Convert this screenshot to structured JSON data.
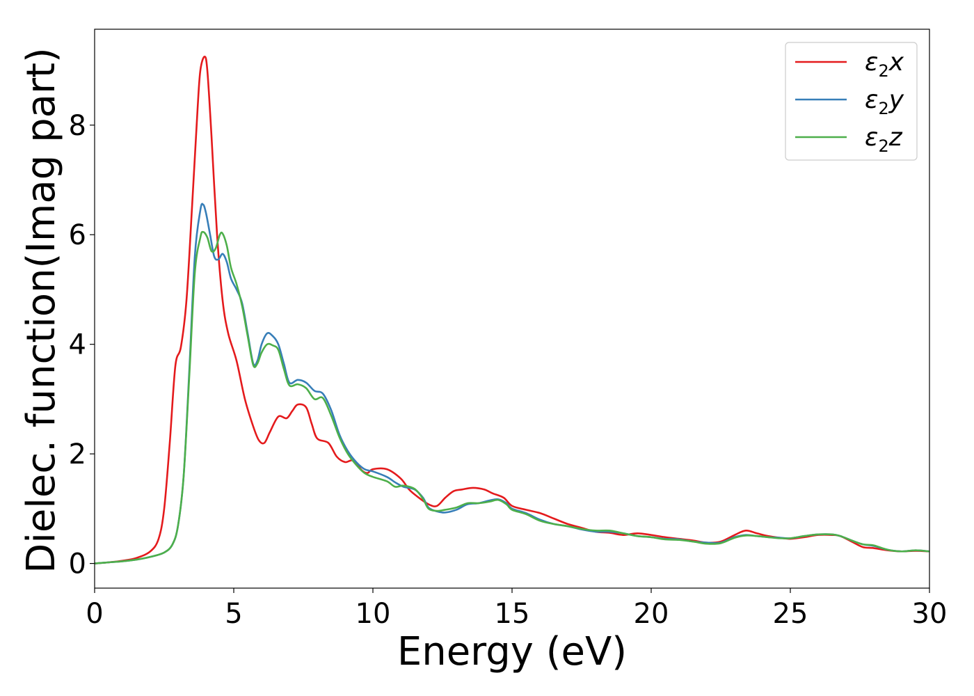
{
  "chart_data": {
    "type": "line",
    "title": "",
    "xlabel": "Energy (eV)",
    "ylabel": "Dielec. function(Imag part)",
    "xlim": [
      0,
      30
    ],
    "ylim": [
      -0.45,
      9.75
    ],
    "xticks": [
      0,
      5,
      10,
      15,
      20,
      25,
      30
    ],
    "xtick_labels": [
      "0",
      "5",
      "10",
      "15",
      "20",
      "25",
      "30"
    ],
    "yticks": [
      0,
      2,
      4,
      6,
      8
    ],
    "ytick_labels": [
      "0",
      "2",
      "4",
      "6",
      "8"
    ],
    "grid": false,
    "legend_position": "top-right",
    "series": [
      {
        "name": "ε₂x",
        "legend_main": "ε",
        "legend_sub": "2",
        "legend_suffix": "x",
        "color": "#e41a1c",
        "points": [
          [
            0,
            0
          ],
          [
            0.5,
            0.02
          ],
          [
            1,
            0.05
          ],
          [
            1.5,
            0.1
          ],
          [
            2,
            0.22
          ],
          [
            2.3,
            0.45
          ],
          [
            2.5,
            1.0
          ],
          [
            2.7,
            2.2
          ],
          [
            2.9,
            3.6
          ],
          [
            3.1,
            3.95
          ],
          [
            3.3,
            4.8
          ],
          [
            3.5,
            6.5
          ],
          [
            3.7,
            8.3
          ],
          [
            3.8,
            9.0
          ],
          [
            3.95,
            9.25
          ],
          [
            4.05,
            9.0
          ],
          [
            4.2,
            7.8
          ],
          [
            4.4,
            6.0
          ],
          [
            4.6,
            4.8
          ],
          [
            4.8,
            4.2
          ],
          [
            5.1,
            3.7
          ],
          [
            5.4,
            3.0
          ],
          [
            5.7,
            2.5
          ],
          [
            5.9,
            2.25
          ],
          [
            6.1,
            2.2
          ],
          [
            6.3,
            2.4
          ],
          [
            6.6,
            2.68
          ],
          [
            6.9,
            2.65
          ],
          [
            7.1,
            2.78
          ],
          [
            7.3,
            2.9
          ],
          [
            7.6,
            2.85
          ],
          [
            7.8,
            2.55
          ],
          [
            8.0,
            2.28
          ],
          [
            8.4,
            2.2
          ],
          [
            8.7,
            1.95
          ],
          [
            9.0,
            1.85
          ],
          [
            9.3,
            1.88
          ],
          [
            9.6,
            1.7
          ],
          [
            9.8,
            1.65
          ],
          [
            10.0,
            1.72
          ],
          [
            10.5,
            1.72
          ],
          [
            11.0,
            1.55
          ],
          [
            11.3,
            1.35
          ],
          [
            11.6,
            1.22
          ],
          [
            12.0,
            1.08
          ],
          [
            12.3,
            1.05
          ],
          [
            12.6,
            1.2
          ],
          [
            12.9,
            1.32
          ],
          [
            13.2,
            1.35
          ],
          [
            13.6,
            1.38
          ],
          [
            14.0,
            1.35
          ],
          [
            14.3,
            1.28
          ],
          [
            14.7,
            1.2
          ],
          [
            15.0,
            1.05
          ],
          [
            15.5,
            0.98
          ],
          [
            16.0,
            0.92
          ],
          [
            16.5,
            0.82
          ],
          [
            17.0,
            0.72
          ],
          [
            17.5,
            0.65
          ],
          [
            18.0,
            0.58
          ],
          [
            18.5,
            0.56
          ],
          [
            19.0,
            0.52
          ],
          [
            19.5,
            0.55
          ],
          [
            20.0,
            0.52
          ],
          [
            20.5,
            0.48
          ],
          [
            21.0,
            0.45
          ],
          [
            21.5,
            0.42
          ],
          [
            22.0,
            0.38
          ],
          [
            22.5,
            0.4
          ],
          [
            23.0,
            0.52
          ],
          [
            23.4,
            0.6
          ],
          [
            23.8,
            0.55
          ],
          [
            24.2,
            0.5
          ],
          [
            24.6,
            0.47
          ],
          [
            25.0,
            0.45
          ],
          [
            25.5,
            0.48
          ],
          [
            26.0,
            0.52
          ],
          [
            26.5,
            0.52
          ],
          [
            26.8,
            0.5
          ],
          [
            27.2,
            0.4
          ],
          [
            27.6,
            0.3
          ],
          [
            28.0,
            0.28
          ],
          [
            28.5,
            0.24
          ],
          [
            29.0,
            0.22
          ],
          [
            29.5,
            0.23
          ],
          [
            30.0,
            0.22
          ]
        ]
      },
      {
        "name": "ε₂y",
        "legend_main": "ε",
        "legend_sub": "2",
        "legend_suffix": "y",
        "color": "#377eb8",
        "points": [
          [
            0,
            0
          ],
          [
            0.5,
            0.02
          ],
          [
            1,
            0.04
          ],
          [
            1.5,
            0.07
          ],
          [
            2,
            0.12
          ],
          [
            2.5,
            0.2
          ],
          [
            2.8,
            0.35
          ],
          [
            3.0,
            0.7
          ],
          [
            3.2,
            1.6
          ],
          [
            3.4,
            3.5
          ],
          [
            3.6,
            5.6
          ],
          [
            3.8,
            6.45
          ],
          [
            3.9,
            6.55
          ],
          [
            4.0,
            6.4
          ],
          [
            4.15,
            6.0
          ],
          [
            4.3,
            5.6
          ],
          [
            4.45,
            5.55
          ],
          [
            4.6,
            5.65
          ],
          [
            4.75,
            5.5
          ],
          [
            4.9,
            5.2
          ],
          [
            5.1,
            5.0
          ],
          [
            5.3,
            4.75
          ],
          [
            5.5,
            4.2
          ],
          [
            5.7,
            3.65
          ],
          [
            5.85,
            3.7
          ],
          [
            6.0,
            4.0
          ],
          [
            6.2,
            4.2
          ],
          [
            6.4,
            4.15
          ],
          [
            6.6,
            4.0
          ],
          [
            6.8,
            3.65
          ],
          [
            7.0,
            3.3
          ],
          [
            7.3,
            3.35
          ],
          [
            7.6,
            3.3
          ],
          [
            7.9,
            3.15
          ],
          [
            8.2,
            3.1
          ],
          [
            8.5,
            2.8
          ],
          [
            8.8,
            2.35
          ],
          [
            9.1,
            2.05
          ],
          [
            9.4,
            1.85
          ],
          [
            9.7,
            1.72
          ],
          [
            10.0,
            1.68
          ],
          [
            10.5,
            1.58
          ],
          [
            10.8,
            1.48
          ],
          [
            11.1,
            1.4
          ],
          [
            11.5,
            1.35
          ],
          [
            11.8,
            1.2
          ],
          [
            12.0,
            1.02
          ],
          [
            12.3,
            0.95
          ],
          [
            12.6,
            0.93
          ],
          [
            13.0,
            0.98
          ],
          [
            13.4,
            1.08
          ],
          [
            13.8,
            1.1
          ],
          [
            14.2,
            1.15
          ],
          [
            14.5,
            1.17
          ],
          [
            14.8,
            1.1
          ],
          [
            15.0,
            1.0
          ],
          [
            15.5,
            0.92
          ],
          [
            16.0,
            0.8
          ],
          [
            16.5,
            0.72
          ],
          [
            17.0,
            0.68
          ],
          [
            17.5,
            0.62
          ],
          [
            18.0,
            0.58
          ],
          [
            18.5,
            0.58
          ],
          [
            19.0,
            0.55
          ],
          [
            19.5,
            0.5
          ],
          [
            20.0,
            0.48
          ],
          [
            20.5,
            0.45
          ],
          [
            21.0,
            0.44
          ],
          [
            21.5,
            0.4
          ],
          [
            22.0,
            0.38
          ],
          [
            22.5,
            0.38
          ],
          [
            23.0,
            0.48
          ],
          [
            23.4,
            0.52
          ],
          [
            23.8,
            0.5
          ],
          [
            24.2,
            0.48
          ],
          [
            24.6,
            0.47
          ],
          [
            25.0,
            0.46
          ],
          [
            25.5,
            0.5
          ],
          [
            26.0,
            0.53
          ],
          [
            26.5,
            0.53
          ],
          [
            26.8,
            0.5
          ],
          [
            27.2,
            0.42
          ],
          [
            27.6,
            0.35
          ],
          [
            28.0,
            0.32
          ],
          [
            28.5,
            0.25
          ],
          [
            29.0,
            0.22
          ],
          [
            29.5,
            0.24
          ],
          [
            30.0,
            0.22
          ]
        ]
      },
      {
        "name": "ε₂z",
        "legend_main": "ε",
        "legend_sub": "2",
        "legend_suffix": "z",
        "color": "#4daf4a",
        "points": [
          [
            0,
            0
          ],
          [
            0.5,
            0.02
          ],
          [
            1,
            0.04
          ],
          [
            1.5,
            0.07
          ],
          [
            2,
            0.12
          ],
          [
            2.5,
            0.2
          ],
          [
            2.8,
            0.35
          ],
          [
            3.0,
            0.7
          ],
          [
            3.2,
            1.6
          ],
          [
            3.4,
            3.4
          ],
          [
            3.6,
            5.3
          ],
          [
            3.8,
            5.95
          ],
          [
            3.9,
            6.05
          ],
          [
            4.05,
            5.95
          ],
          [
            4.2,
            5.7
          ],
          [
            4.35,
            5.75
          ],
          [
            4.5,
            6.0
          ],
          [
            4.6,
            6.02
          ],
          [
            4.75,
            5.8
          ],
          [
            4.9,
            5.4
          ],
          [
            5.1,
            5.1
          ],
          [
            5.3,
            4.7
          ],
          [
            5.5,
            4.15
          ],
          [
            5.7,
            3.62
          ],
          [
            5.85,
            3.65
          ],
          [
            6.0,
            3.85
          ],
          [
            6.2,
            4.0
          ],
          [
            6.4,
            3.98
          ],
          [
            6.6,
            3.9
          ],
          [
            6.8,
            3.55
          ],
          [
            7.0,
            3.25
          ],
          [
            7.3,
            3.27
          ],
          [
            7.6,
            3.2
          ],
          [
            7.9,
            3.0
          ],
          [
            8.2,
            3.02
          ],
          [
            8.5,
            2.7
          ],
          [
            8.8,
            2.3
          ],
          [
            9.1,
            2.0
          ],
          [
            9.4,
            1.8
          ],
          [
            9.7,
            1.65
          ],
          [
            10.0,
            1.58
          ],
          [
            10.5,
            1.5
          ],
          [
            10.8,
            1.4
          ],
          [
            11.1,
            1.42
          ],
          [
            11.5,
            1.36
          ],
          [
            11.8,
            1.18
          ],
          [
            12.0,
            1.0
          ],
          [
            12.3,
            0.96
          ],
          [
            12.6,
            0.98
          ],
          [
            13.0,
            1.02
          ],
          [
            13.4,
            1.1
          ],
          [
            13.8,
            1.1
          ],
          [
            14.2,
            1.13
          ],
          [
            14.5,
            1.16
          ],
          [
            14.8,
            1.08
          ],
          [
            15.0,
            0.98
          ],
          [
            15.5,
            0.9
          ],
          [
            16.0,
            0.78
          ],
          [
            16.5,
            0.72
          ],
          [
            17.0,
            0.68
          ],
          [
            17.5,
            0.63
          ],
          [
            18.0,
            0.6
          ],
          [
            18.5,
            0.6
          ],
          [
            19.0,
            0.55
          ],
          [
            19.5,
            0.5
          ],
          [
            20.0,
            0.48
          ],
          [
            20.5,
            0.44
          ],
          [
            21.0,
            0.43
          ],
          [
            21.5,
            0.4
          ],
          [
            22.0,
            0.36
          ],
          [
            22.5,
            0.37
          ],
          [
            23.0,
            0.47
          ],
          [
            23.4,
            0.51
          ],
          [
            23.8,
            0.5
          ],
          [
            24.2,
            0.48
          ],
          [
            24.6,
            0.46
          ],
          [
            25.0,
            0.46
          ],
          [
            25.5,
            0.5
          ],
          [
            26.0,
            0.53
          ],
          [
            26.5,
            0.53
          ],
          [
            26.8,
            0.5
          ],
          [
            27.2,
            0.42
          ],
          [
            27.6,
            0.35
          ],
          [
            28.0,
            0.33
          ],
          [
            28.5,
            0.25
          ],
          [
            29.0,
            0.22
          ],
          [
            29.5,
            0.24
          ],
          [
            30.0,
            0.22
          ]
        ]
      }
    ]
  }
}
